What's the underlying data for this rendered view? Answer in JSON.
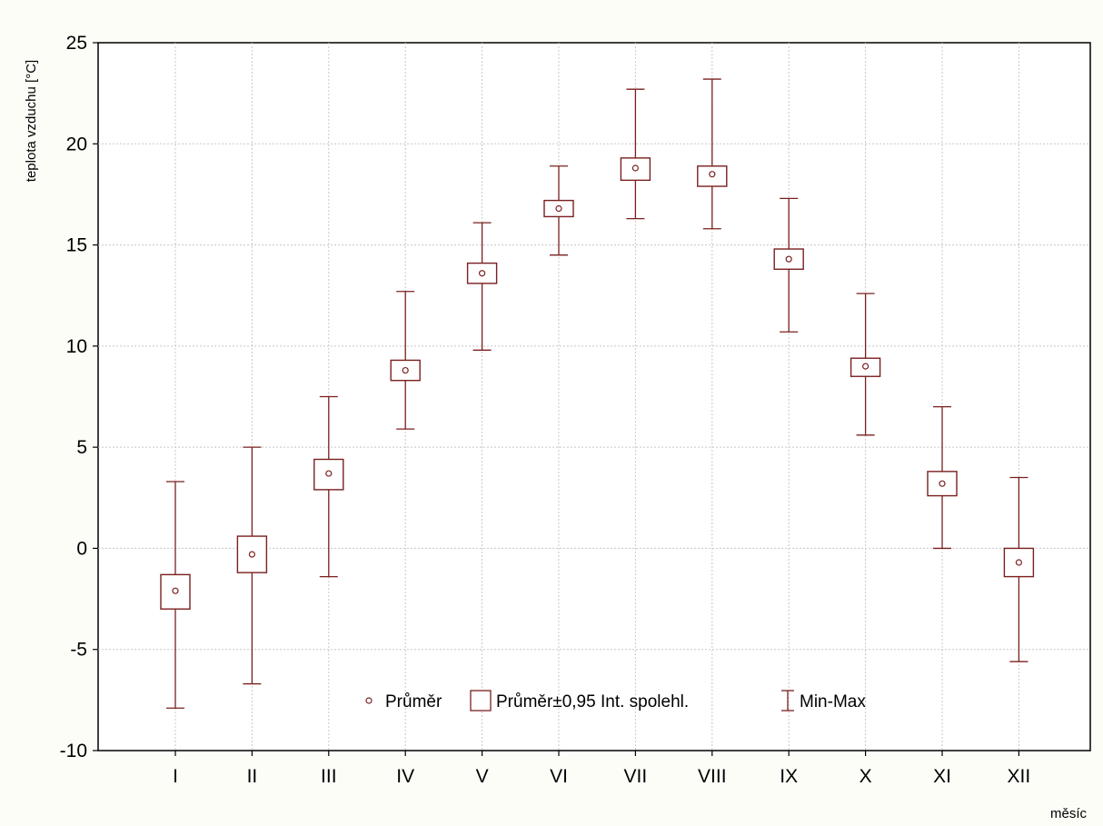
{
  "chart_data": {
    "type": "box",
    "xlabel": "měsíc",
    "ylabel": "teplota vzduchu [°C]",
    "ylim": [
      -10,
      25
    ],
    "yticks": [
      -10,
      -5,
      0,
      5,
      10,
      15,
      20,
      25
    ],
    "grid": true,
    "legend_position": "bottom-center",
    "categories": [
      "I",
      "II",
      "III",
      "IV",
      "V",
      "VI",
      "VII",
      "VIII",
      "IX",
      "X",
      "XI",
      "XII"
    ],
    "series": [
      {
        "name": "Průměr",
        "values": [
          -2.1,
          -0.3,
          3.7,
          8.8,
          13.6,
          16.8,
          18.8,
          18.5,
          14.3,
          9.0,
          3.2,
          -0.7
        ]
      },
      {
        "name": "Průměr±0,95 Int. spolehl.",
        "lower": [
          -3.0,
          -1.2,
          2.9,
          8.3,
          13.1,
          16.4,
          18.2,
          17.9,
          13.8,
          8.5,
          2.6,
          -1.4
        ],
        "upper": [
          -1.3,
          0.6,
          4.4,
          9.3,
          14.1,
          17.2,
          19.3,
          18.9,
          14.8,
          9.4,
          3.8,
          0.0
        ]
      },
      {
        "name": "Min-Max",
        "min": [
          -7.9,
          -6.7,
          -1.4,
          5.9,
          9.8,
          14.5,
          16.3,
          15.8,
          10.7,
          5.6,
          0.0,
          -5.6
        ],
        "max": [
          3.3,
          5.0,
          7.5,
          12.7,
          16.1,
          18.9,
          22.7,
          23.2,
          17.3,
          12.6,
          7.0,
          3.5
        ]
      }
    ],
    "colors": {
      "box": "#7a1f1f",
      "background": "#fdfdf8",
      "grid": "#c8c8c8"
    }
  }
}
